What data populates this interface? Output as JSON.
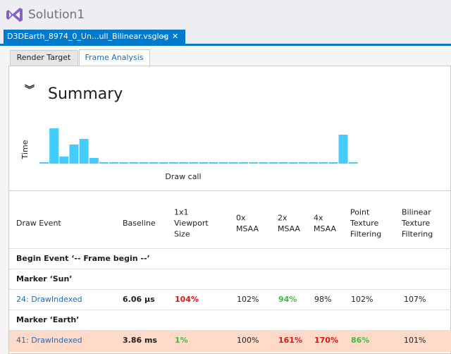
{
  "window": {
    "title": "Solution1"
  },
  "document_tab": {
    "label": "D3DEarth_8974_0_Un...ull_Bilinear.vsglog",
    "pin": "⊸",
    "close": "✕"
  },
  "tabs": [
    "Render Target",
    "Frame Analysis"
  ],
  "active_tab": 1,
  "summary": {
    "toggle": "︾",
    "heading": "Summary"
  },
  "chart_data": {
    "type": "bar",
    "y_label": "Time",
    "x_label": "Draw call",
    "color": "#44ccff",
    "values": [
      2,
      50,
      10,
      27,
      35,
      8,
      2,
      2,
      2,
      2,
      2,
      2,
      2,
      2,
      2,
      2,
      2,
      2,
      2,
      2,
      2,
      2,
      2,
      2,
      2,
      2,
      2,
      2,
      2,
      2,
      41,
      2
    ]
  },
  "table": {
    "columns": [
      [
        "Draw Event"
      ],
      [
        "Baseline"
      ],
      [
        "1x1",
        "Viewport",
        "Size"
      ],
      [
        "0x",
        "MSAA"
      ],
      [
        "2x",
        "MSAA"
      ],
      [
        "4x",
        "MSAA"
      ],
      [
        "Point",
        "Texture",
        "Filtering"
      ],
      [
        "Bilinear",
        "Texture",
        "Filtering"
      ]
    ],
    "rows": [
      {
        "kind": "group",
        "label": "Begin Event ‘-- Frame begin --’"
      },
      {
        "kind": "group",
        "label": "Marker ‘Sun’"
      },
      {
        "kind": "data",
        "event": "24: DrawIndexed",
        "baseline": "6.06 µs",
        "selected": false,
        "cells": [
          {
            "text": "104%",
            "color": "#e0161c"
          },
          {
            "text": "102%",
            "color": "#1e1e1e"
          },
          {
            "text": "94%",
            "color": "#3dbb3d"
          },
          {
            "text": "98%",
            "color": "#1e1e1e"
          },
          {
            "text": "102%",
            "color": "#1e1e1e"
          },
          {
            "text": "107%",
            "color": "#1e1e1e"
          }
        ]
      },
      {
        "kind": "group",
        "label": "Marker ‘Earth’"
      },
      {
        "kind": "data",
        "event": "41: DrawIndexed",
        "baseline": "3.86 ms",
        "selected": true,
        "cells": [
          {
            "text": "1%",
            "color": "#3dbb3d"
          },
          {
            "text": "100%",
            "color": "#1e1e1e"
          },
          {
            "text": "161%",
            "color": "#e0161c"
          },
          {
            "text": "170%",
            "color": "#e0161c"
          },
          {
            "text": "86%",
            "color": "#3dbb3d"
          },
          {
            "text": "101%",
            "color": "#1e1e1e"
          }
        ]
      }
    ]
  }
}
